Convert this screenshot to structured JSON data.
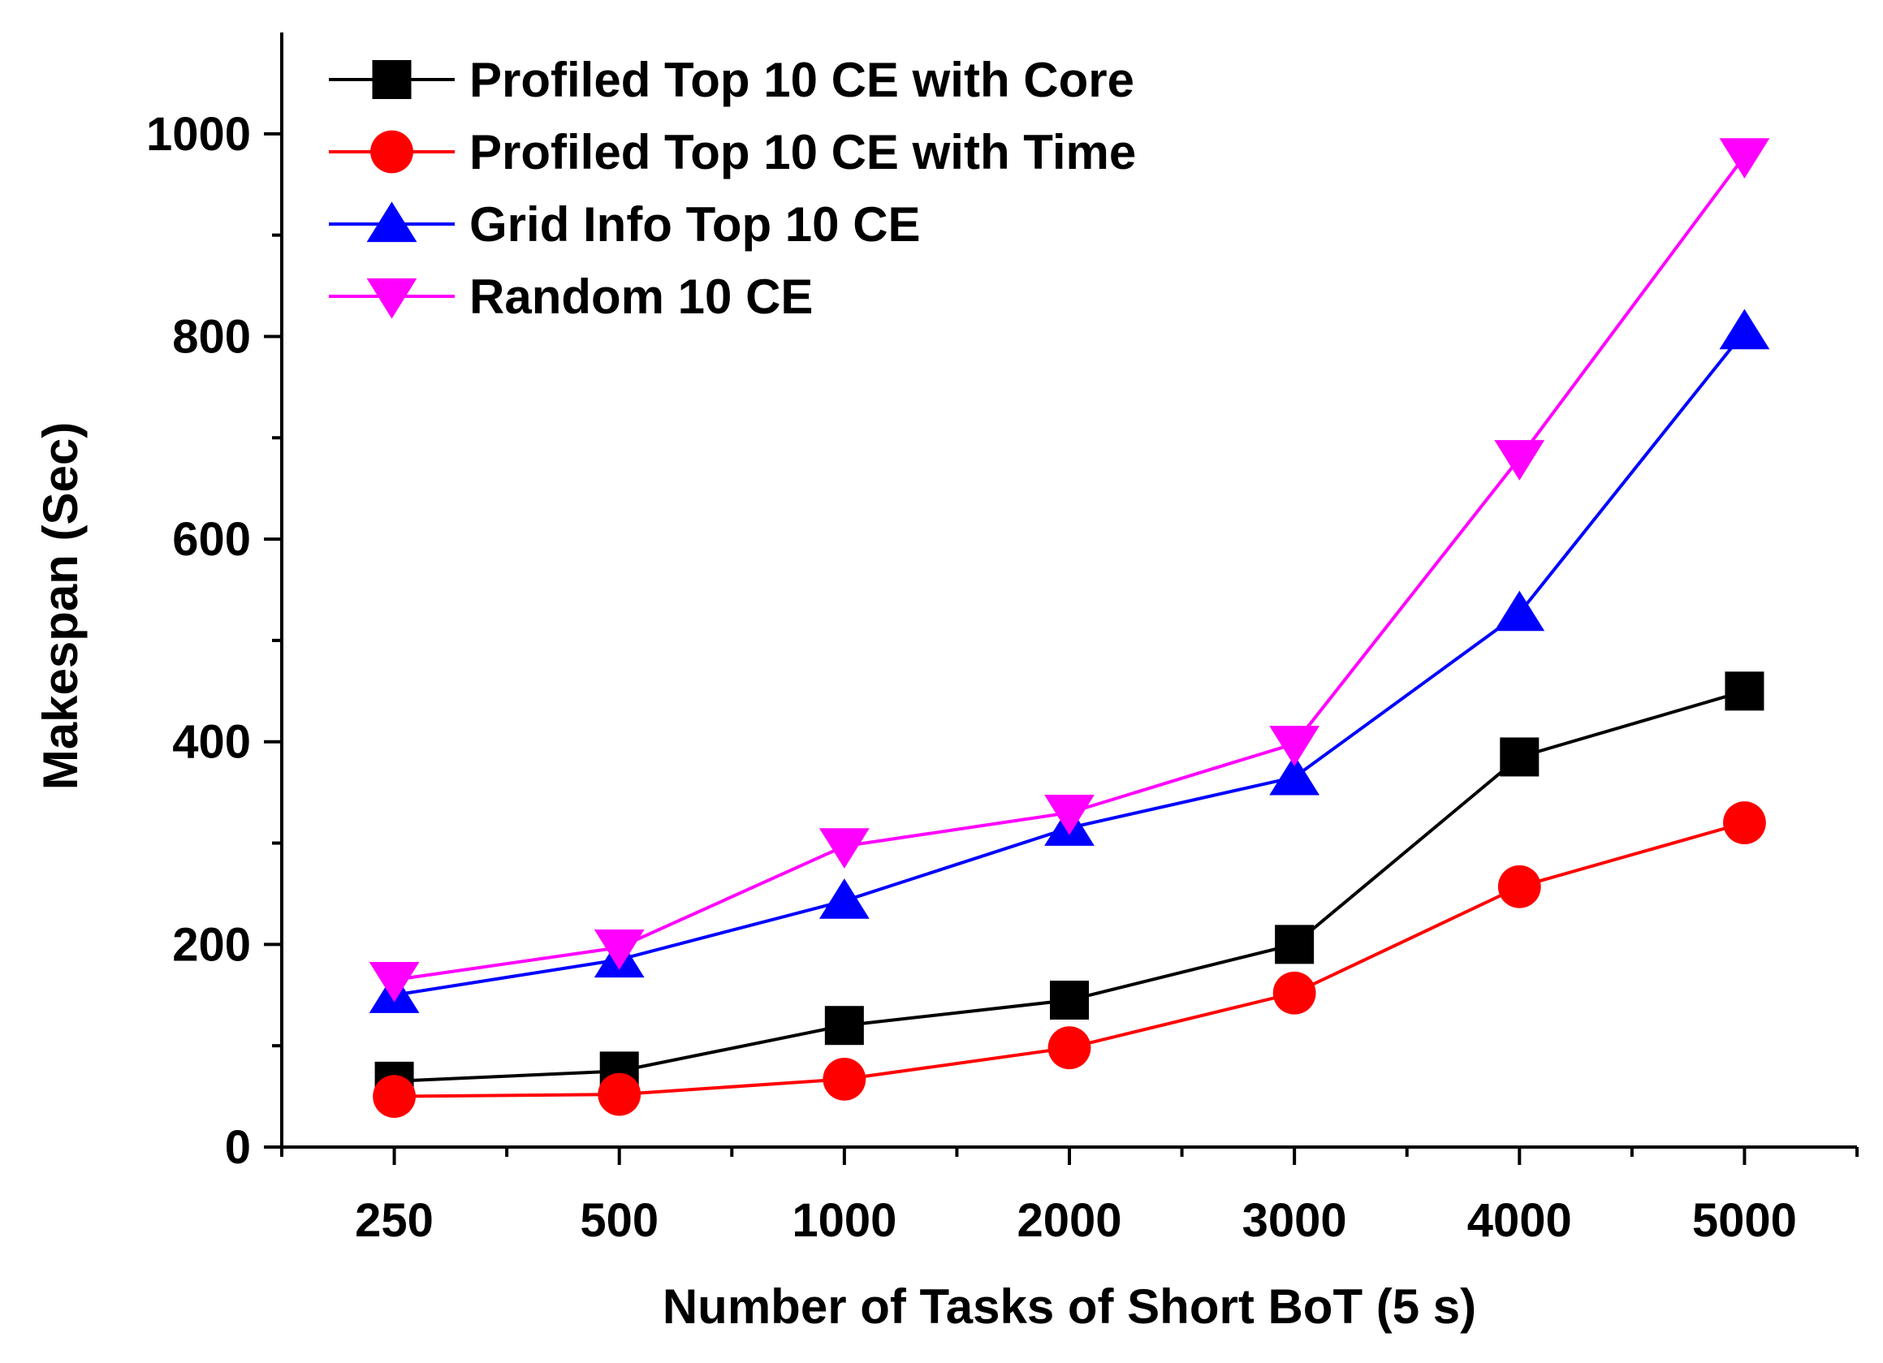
{
  "chart_data": {
    "type": "line",
    "xlabel": "Number of Tasks of Short BoT (5 s)",
    "ylabel": "Makespan (Sec)",
    "categories": [
      "250",
      "500",
      "1000",
      "2000",
      "3000",
      "4000",
      "5000"
    ],
    "ylim": [
      0,
      1100
    ],
    "yticks": [
      0,
      200,
      400,
      600,
      800,
      1000
    ],
    "legend_position": "top-left",
    "grid": false,
    "series": [
      {
        "name": "Profiled Top 10 CE with Core",
        "color": "#000000",
        "marker": "square",
        "values": [
          65,
          75,
          120,
          145,
          200,
          385,
          450
        ]
      },
      {
        "name": "Profiled Top 10 CE with Time",
        "color": "#ff0000",
        "marker": "circle",
        "values": [
          50,
          52,
          67,
          98,
          152,
          257,
          320
        ]
      },
      {
        "name": "Grid Info Top 10 CE",
        "color": "#0000ff",
        "marker": "triangle-up",
        "values": [
          150,
          185,
          243,
          315,
          365,
          527,
          805
        ]
      },
      {
        "name": "Random 10 CE",
        "color": "#ff00ff",
        "marker": "triangle-down",
        "values": [
          165,
          197,
          297,
          330,
          398,
          680,
          978
        ]
      }
    ]
  }
}
